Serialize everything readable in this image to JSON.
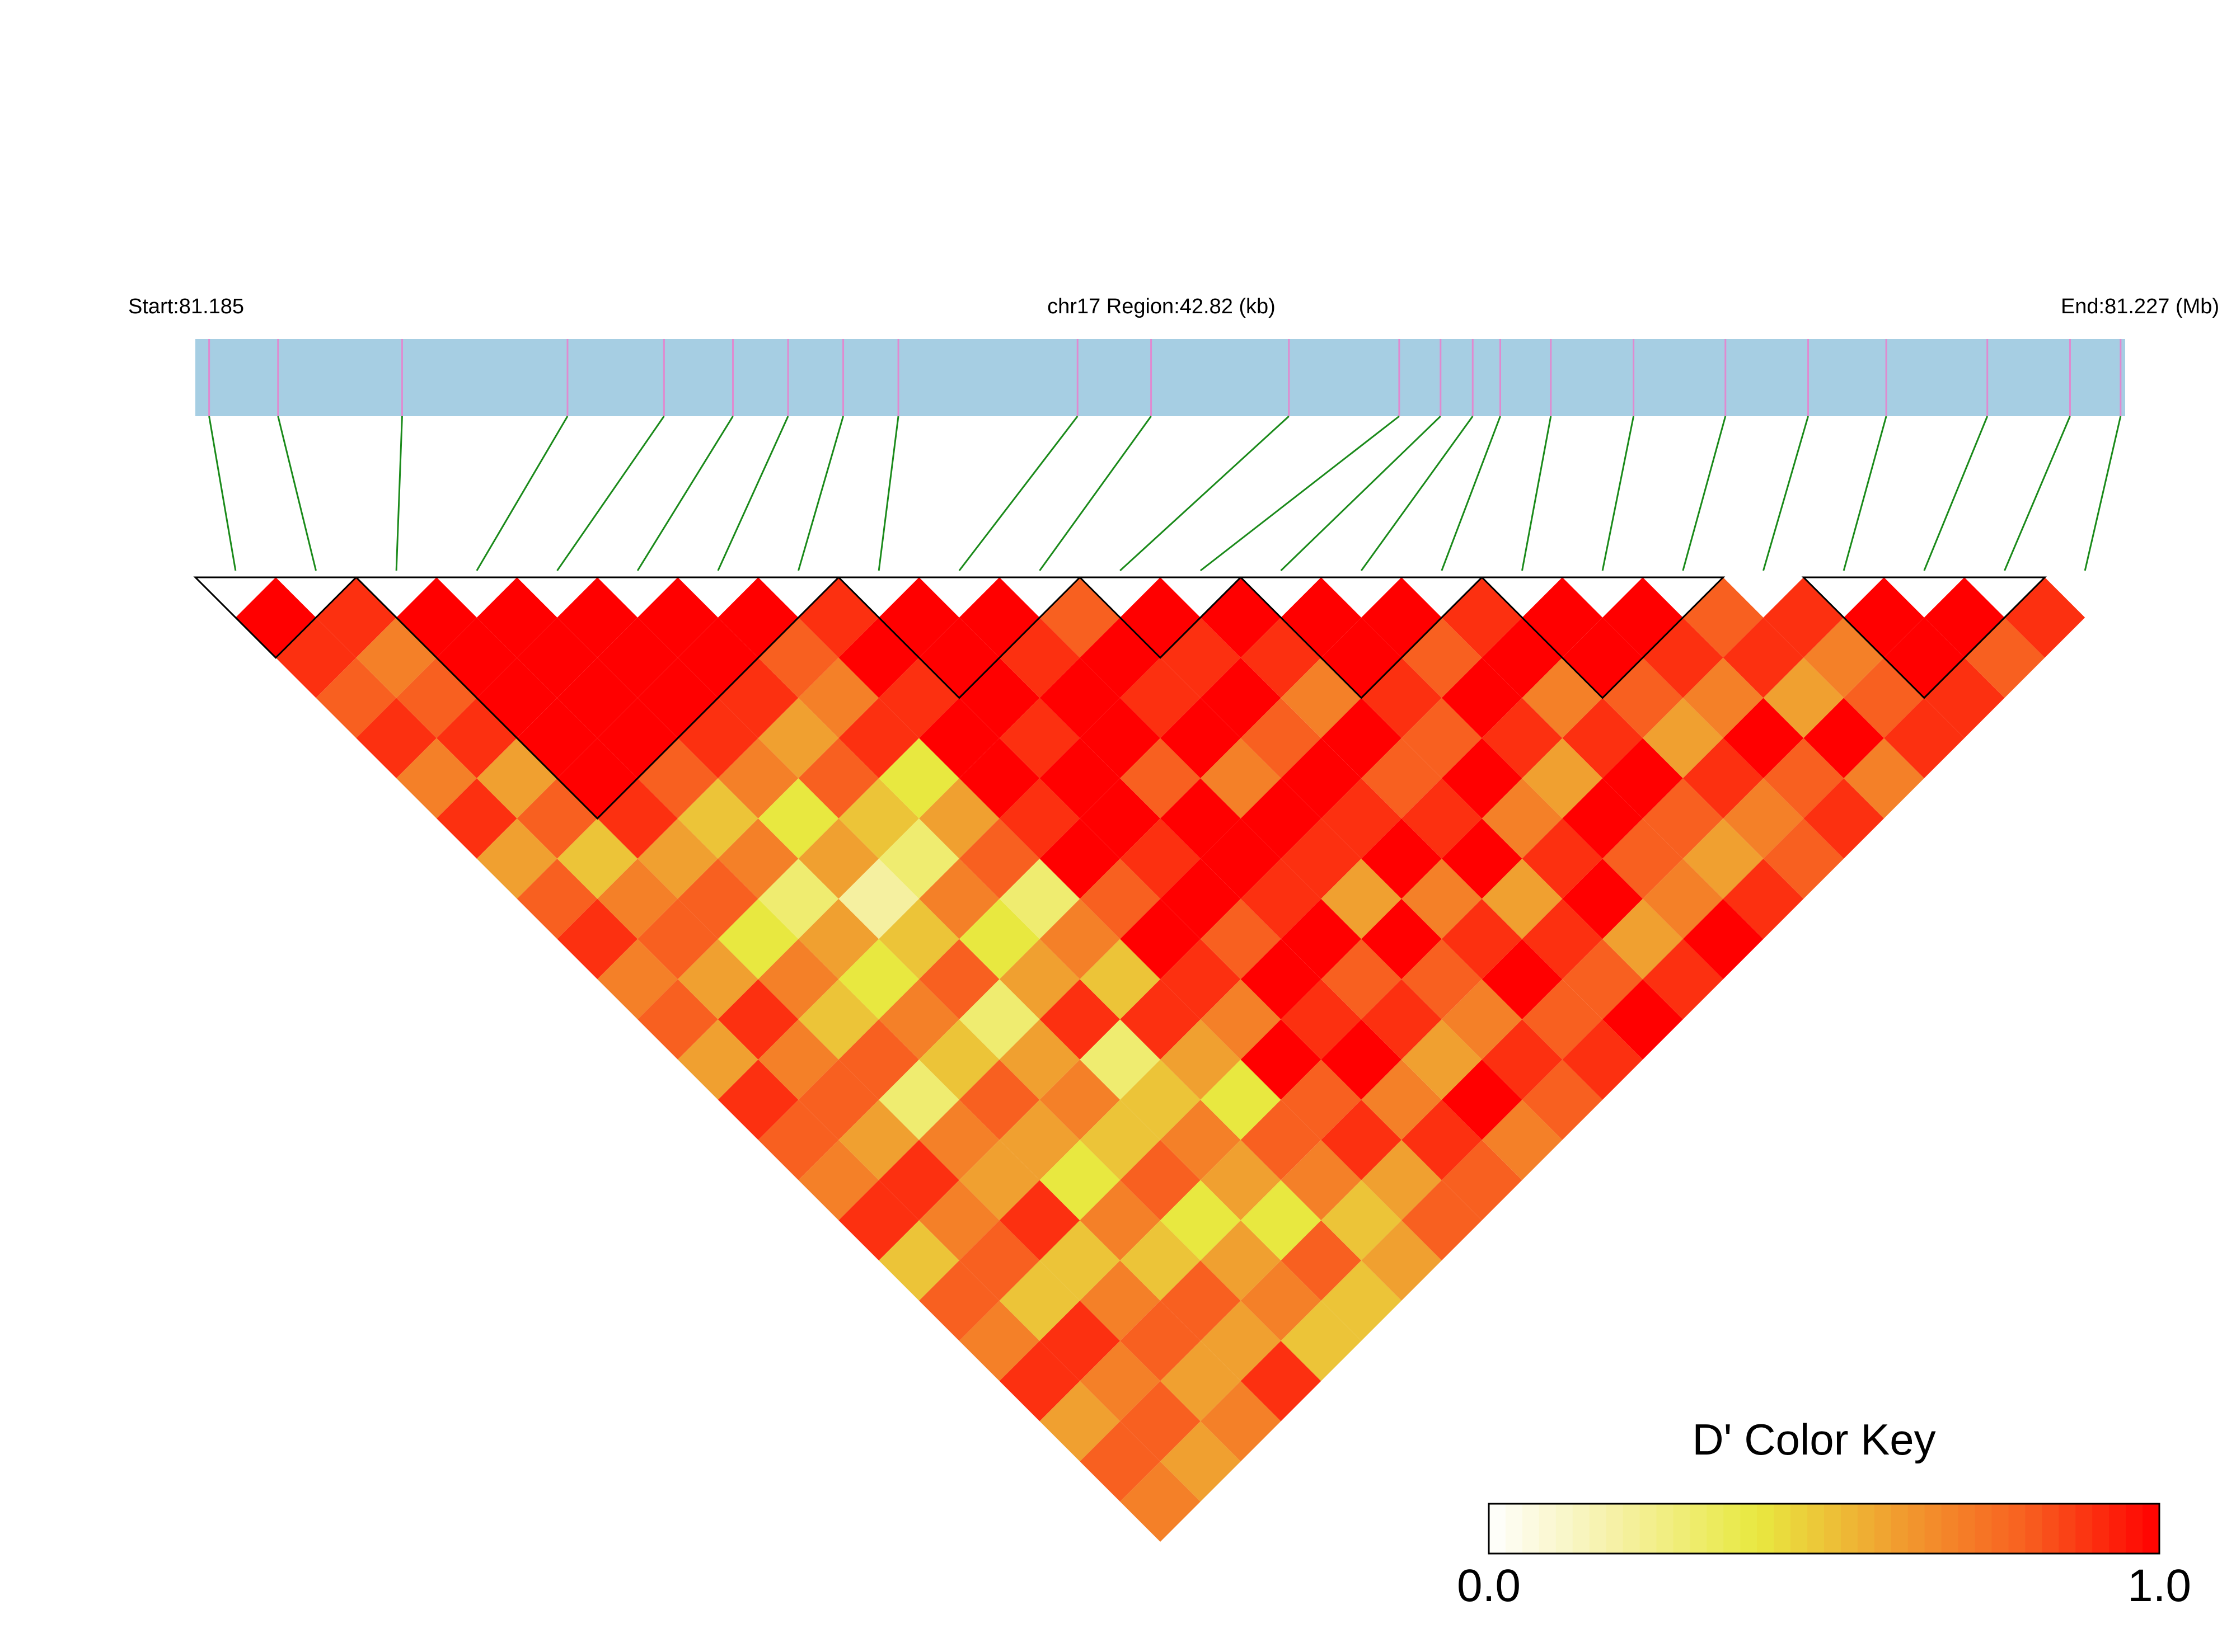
{
  "chart_data": {
    "type": "heatmap",
    "start_label": "Start:81.185",
    "title": "chr17 Region:42.82 (kb)",
    "end_label": "End:81.227 (Mb)",
    "xlim": [
      81.185,
      81.227
    ],
    "bar_color": "#a6cee3",
    "snp_color": "#e08ad0",
    "link_color": "#1a8a1a",
    "block_color": "#000000",
    "snp_positions": [
      81.1853,
      81.1868,
      81.1895,
      81.1931,
      81.1952,
      81.1967,
      81.1979,
      81.1991,
      81.2003,
      81.2042,
      81.2058,
      81.2088,
      81.2112,
      81.2121,
      81.2128,
      81.2134,
      81.2145,
      81.2163,
      81.2183,
      81.2201,
      81.2218,
      81.224,
      81.2258,
      81.2269
    ],
    "dprime": [
      [
        1,
        0.9,
        0.8,
        0.9,
        0.7,
        0.9,
        0.6,
        0.8,
        0.9,
        0.7,
        0.8,
        0.6,
        0.9,
        0.8,
        0.7,
        0.9,
        0.5,
        0.8,
        0.7,
        0.9,
        0.6,
        0.8,
        0.7
      ],
      [
        0.9,
        0.7,
        0.8,
        0.9,
        0.6,
        0.8,
        0.5,
        0.7,
        0.8,
        0.6,
        0.9,
        0.7,
        0.8,
        0.6,
        0.9,
        0.7,
        0.8,
        0.5,
        0.9,
        0.7,
        0.8,
        0.6
      ],
      [
        1,
        1,
        1,
        1,
        1,
        0.9,
        0.6,
        0.8,
        0.4,
        0.7,
        0.5,
        0.8,
        0.3,
        0.7,
        0.6,
        0.9,
        0.5,
        0.7,
        0.8,
        0.6,
        0.7
      ],
      [
        1,
        1,
        1,
        1,
        0.8,
        0.5,
        0.7,
        0.3,
        0.6,
        0.4,
        0.7,
        0.5,
        0.8,
        0.6,
        0.4,
        0.7,
        0.5,
        0.8,
        0.6,
        0.9
      ],
      [
        1,
        1,
        1,
        0.9,
        0.7,
        0.4,
        0.6,
        0.2,
        0.5,
        0.8,
        0.3,
        0.6,
        0.7,
        0.5,
        0.8,
        0.4,
        0.6,
        0.7,
        0.5
      ],
      [
        1,
        1,
        0.9,
        0.6,
        0.8,
        0.5,
        0.3,
        0.7,
        0.4,
        0.6,
        0.9,
        0.3,
        0.5,
        0.7,
        0.6,
        0.4,
        0.8,
        0.5
      ],
      [
        1,
        0.8,
        0.7,
        0.9,
        0.4,
        0.6,
        0.8,
        0.3,
        0.7,
        0.5,
        0.9,
        0.6,
        0.4,
        0.8,
        0.7,
        0.5,
        0.6
      ],
      [
        0.9,
        1,
        0.9,
        1,
        1,
        0.9,
        1,
        0.8,
        1,
        0.9,
        0.7,
        1,
        0.8,
        0.9,
        0.6,
        0.8
      ],
      [
        1,
        1,
        1,
        0.9,
        1,
        1,
        0.9,
        1,
        0.8,
        1,
        0.9,
        1,
        0.7,
        0.9,
        0.8
      ],
      [
        1,
        0.9,
        1,
        1,
        0.8,
        1,
        1,
        0.9,
        1,
        0.8,
        0.9,
        0.6,
        1,
        0.7
      ],
      [
        0.8,
        1,
        0.9,
        1,
        0.7,
        1,
        0.9,
        0.6,
        1,
        0.8,
        0.7,
        0.9,
        0.8
      ],
      [
        1,
        0.9,
        1,
        0.8,
        1,
        0.9,
        1,
        0.7,
        0.9,
        1,
        0.8,
        0.9
      ],
      [
        1,
        0.9,
        0.7,
        1,
        0.8,
        0.9,
        1,
        0.6,
        0.9,
        0.8,
        1
      ],
      [
        1,
        1,
        0.9,
        0.8,
        1,
        0.7,
        0.9,
        1,
        0.6,
        0.9
      ],
      [
        1,
        0.8,
        1,
        0.9,
        0.6,
        1,
        0.8,
        0.7,
        1
      ],
      [
        0.9,
        1,
        0.7,
        0.9,
        1,
        0.8,
        0.6,
        0.9
      ],
      [
        1,
        1,
        0.8,
        0.6,
        0.9,
        0.7,
        0.8
      ],
      [
        1,
        0.9,
        0.7,
        1,
        0.8,
        0.9
      ],
      [
        0.8,
        0.9,
        0.6,
        1,
        0.7
      ],
      [
        0.9,
        0.7,
        0.8,
        0.9
      ],
      [
        1,
        1,
        0.9
      ],
      [
        1,
        0.8
      ],
      [
        0.9
      ]
    ],
    "blocks": [
      [
        0,
        1
      ],
      [
        2,
        7
      ],
      [
        8,
        10
      ],
      [
        11,
        12
      ],
      [
        13,
        15
      ],
      [
        16,
        18
      ],
      [
        20,
        22
      ]
    ],
    "color_key": {
      "title": "D' Color Key",
      "colors": [
        "#ffffff",
        "#f5f0a0",
        "#e8e840",
        "#f0a030",
        "#f86020",
        "#ff0000"
      ],
      "ticks": [
        {
          "value": 0,
          "label": "0.0"
        },
        {
          "value": 1,
          "label": "1.0"
        }
      ]
    }
  }
}
